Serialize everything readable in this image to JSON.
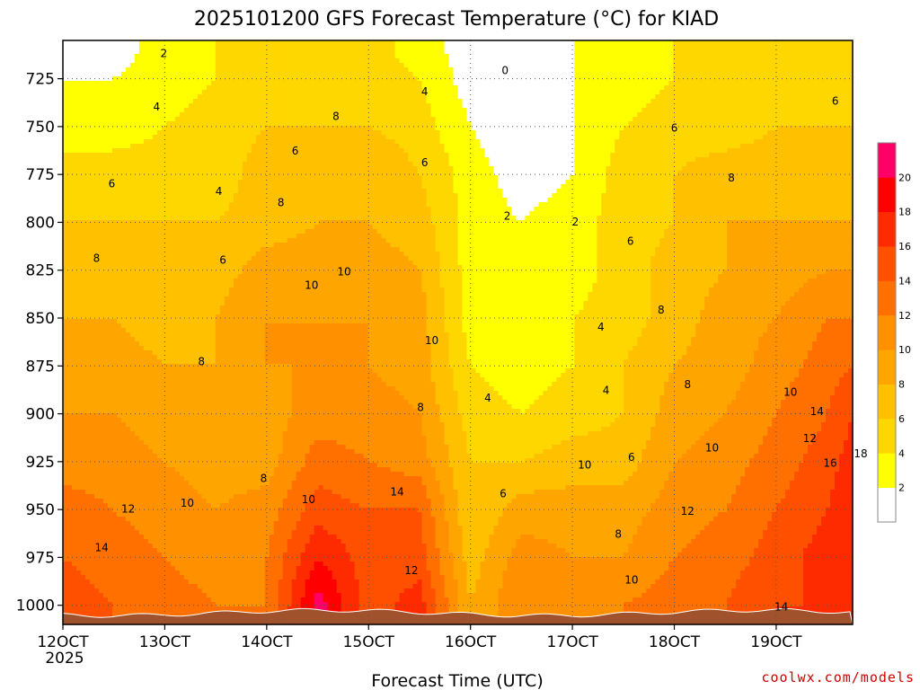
{
  "chart_data": {
    "type": "heatmap",
    "title": "2025101200 GFS Forecast Temperature (°C) for KIAD",
    "xlabel": "Forecast Time (UTC)",
    "ylabel": "",
    "x_ticks": [
      "12OCT",
      "13OCT",
      "14OCT",
      "15OCT",
      "16OCT",
      "17OCT",
      "18OCT",
      "19OCT"
    ],
    "x_tick_sublabel": "2025",
    "x_range_days": [
      12,
      19.75
    ],
    "y_ticks": [
      725,
      750,
      775,
      800,
      825,
      850,
      875,
      900,
      925,
      950,
      975,
      1000
    ],
    "y_range_hpa": [
      705,
      1010
    ],
    "colorbar": {
      "levels": [
        0,
        2,
        4,
        6,
        8,
        10,
        12,
        14,
        16,
        18,
        20,
        22
      ],
      "tick_labels": [
        "2",
        "4",
        "6",
        "8",
        "10",
        "12",
        "14",
        "16",
        "18",
        "20"
      ],
      "colors": [
        "#ffffff",
        "#ffff00",
        "#ffd700",
        "#ffc000",
        "#ffa500",
        "#ff9000",
        "#ff7000",
        "#ff5000",
        "#ff2b00",
        "#ff0000",
        "#ff0066"
      ]
    },
    "grid": true,
    "pressure_levels": [
      710,
      725,
      750,
      775,
      800,
      825,
      850,
      875,
      900,
      925,
      950,
      975,
      1000
    ],
    "times_days": [
      12.0,
      12.5,
      13.0,
      13.5,
      14.0,
      14.5,
      15.0,
      15.5,
      16.0,
      16.5,
      17.0,
      17.5,
      18.0,
      18.5,
      19.0,
      19.5,
      19.75
    ],
    "values": [
      [
        1,
        1,
        3,
        4,
        4,
        5,
        5,
        3,
        1,
        0,
        2,
        3,
        4,
        4,
        5,
        5,
        5
      ],
      [
        2,
        2,
        3,
        4,
        5,
        5,
        5,
        4,
        1,
        0,
        2,
        3,
        4,
        5,
        5,
        5,
        5
      ],
      [
        3,
        3,
        4,
        5,
        6,
        6,
        6,
        5,
        2,
        0,
        2,
        4,
        5,
        5,
        6,
        6,
        6
      ],
      [
        5,
        5,
        5,
        5,
        7,
        7,
        8,
        6,
        3,
        1,
        2,
        5,
        6,
        7,
        7,
        7,
        7
      ],
      [
        6,
        6,
        6,
        6,
        7,
        8,
        8,
        7,
        3,
        2,
        3,
        5,
        6,
        8,
        8,
        8,
        8
      ],
      [
        7,
        7,
        7,
        7,
        9,
        9,
        9,
        8,
        3,
        2,
        3,
        5,
        7,
        8,
        9,
        10,
        10
      ],
      [
        8,
        8,
        7,
        8,
        10,
        10,
        10,
        9,
        3,
        2,
        4,
        5,
        7,
        9,
        10,
        12,
        12
      ],
      [
        9,
        9,
        8,
        8,
        10,
        10,
        10,
        9,
        4,
        3,
        4,
        6,
        8,
        9,
        11,
        13,
        14
      ],
      [
        10,
        10,
        9,
        9,
        9,
        11,
        11,
        10,
        5,
        4,
        5,
        6,
        9,
        10,
        12,
        14,
        16
      ],
      [
        11,
        11,
        10,
        9,
        9,
        13,
        12,
        11,
        6,
        6,
        7,
        7,
        10,
        11,
        13,
        15,
        17
      ],
      [
        13,
        12,
        11,
        10,
        11,
        15,
        14,
        14,
        6,
        9,
        9,
        9,
        11,
        12,
        14,
        16,
        18
      ],
      [
        14,
        13,
        12,
        11,
        12,
        18,
        15,
        15,
        7,
        11,
        10,
        10,
        12,
        13,
        15,
        17,
        17
      ],
      [
        15,
        14,
        13,
        12,
        12,
        21,
        15,
        17,
        8,
        12,
        11,
        12,
        13,
        14,
        16,
        16,
        16
      ]
    ],
    "contour_labels": [
      {
        "text": "2",
        "t": 12.99,
        "p": 712
      },
      {
        "text": "4",
        "t": 12.92,
        "p": 740
      },
      {
        "text": "4",
        "t": 13.53,
        "p": 784
      },
      {
        "text": "6",
        "t": 12.48,
        "p": 780
      },
      {
        "text": "6",
        "t": 13.57,
        "p": 820
      },
      {
        "text": "6",
        "t": 14.28,
        "p": 763
      },
      {
        "text": "8",
        "t": 12.33,
        "p": 819
      },
      {
        "text": "8",
        "t": 13.36,
        "p": 873
      },
      {
        "text": "8",
        "t": 14.14,
        "p": 790
      },
      {
        "text": "8",
        "t": 14.68,
        "p": 745
      },
      {
        "text": "10",
        "t": 14.44,
        "p": 833
      },
      {
        "text": "10",
        "t": 14.76,
        "p": 826
      },
      {
        "text": "10",
        "t": 15.62,
        "p": 862
      },
      {
        "text": "8",
        "t": 15.51,
        "p": 897
      },
      {
        "text": "8",
        "t": 13.97,
        "p": 934
      },
      {
        "text": "10",
        "t": 13.22,
        "p": 947
      },
      {
        "text": "10",
        "t": 14.41,
        "p": 945
      },
      {
        "text": "12",
        "t": 12.64,
        "p": 950
      },
      {
        "text": "14",
        "t": 12.38,
        "p": 970
      },
      {
        "text": "14",
        "t": 15.28,
        "p": 941
      },
      {
        "text": "12",
        "t": 15.42,
        "p": 982
      },
      {
        "text": "4",
        "t": 15.55,
        "p": 732
      },
      {
        "text": "6",
        "t": 15.55,
        "p": 769
      },
      {
        "text": "0",
        "t": 16.34,
        "p": 721
      },
      {
        "text": "2",
        "t": 16.36,
        "p": 797
      },
      {
        "text": "2",
        "t": 17.03,
        "p": 800
      },
      {
        "text": "4",
        "t": 16.17,
        "p": 892
      },
      {
        "text": "4",
        "t": 17.28,
        "p": 855
      },
      {
        "text": "4",
        "t": 17.33,
        "p": 888
      },
      {
        "text": "6",
        "t": 16.32,
        "p": 942
      },
      {
        "text": "6",
        "t": 17.57,
        "p": 810
      },
      {
        "text": "6",
        "t": 17.58,
        "p": 923
      },
      {
        "text": "6",
        "t": 18.0,
        "p": 751
      },
      {
        "text": "6",
        "t": 19.58,
        "p": 737
      },
      {
        "text": "8",
        "t": 17.45,
        "p": 963
      },
      {
        "text": "8",
        "t": 17.87,
        "p": 846
      },
      {
        "text": "8",
        "t": 18.13,
        "p": 885
      },
      {
        "text": "8",
        "t": 18.56,
        "p": 777
      },
      {
        "text": "10",
        "t": 17.12,
        "p": 927
      },
      {
        "text": "10",
        "t": 17.58,
        "p": 987
      },
      {
        "text": "10",
        "t": 18.37,
        "p": 918
      },
      {
        "text": "10",
        "t": 19.14,
        "p": 889
      },
      {
        "text": "12",
        "t": 18.13,
        "p": 951
      },
      {
        "text": "12",
        "t": 19.33,
        "p": 913
      },
      {
        "text": "14",
        "t": 19.4,
        "p": 899
      },
      {
        "text": "14",
        "t": 19.05,
        "p": 1001
      },
      {
        "text": "16",
        "t": 19.53,
        "p": 926
      },
      {
        "text": "18",
        "t": 19.83,
        "p": 921
      }
    ],
    "credit": "coolwx.com/models"
  }
}
